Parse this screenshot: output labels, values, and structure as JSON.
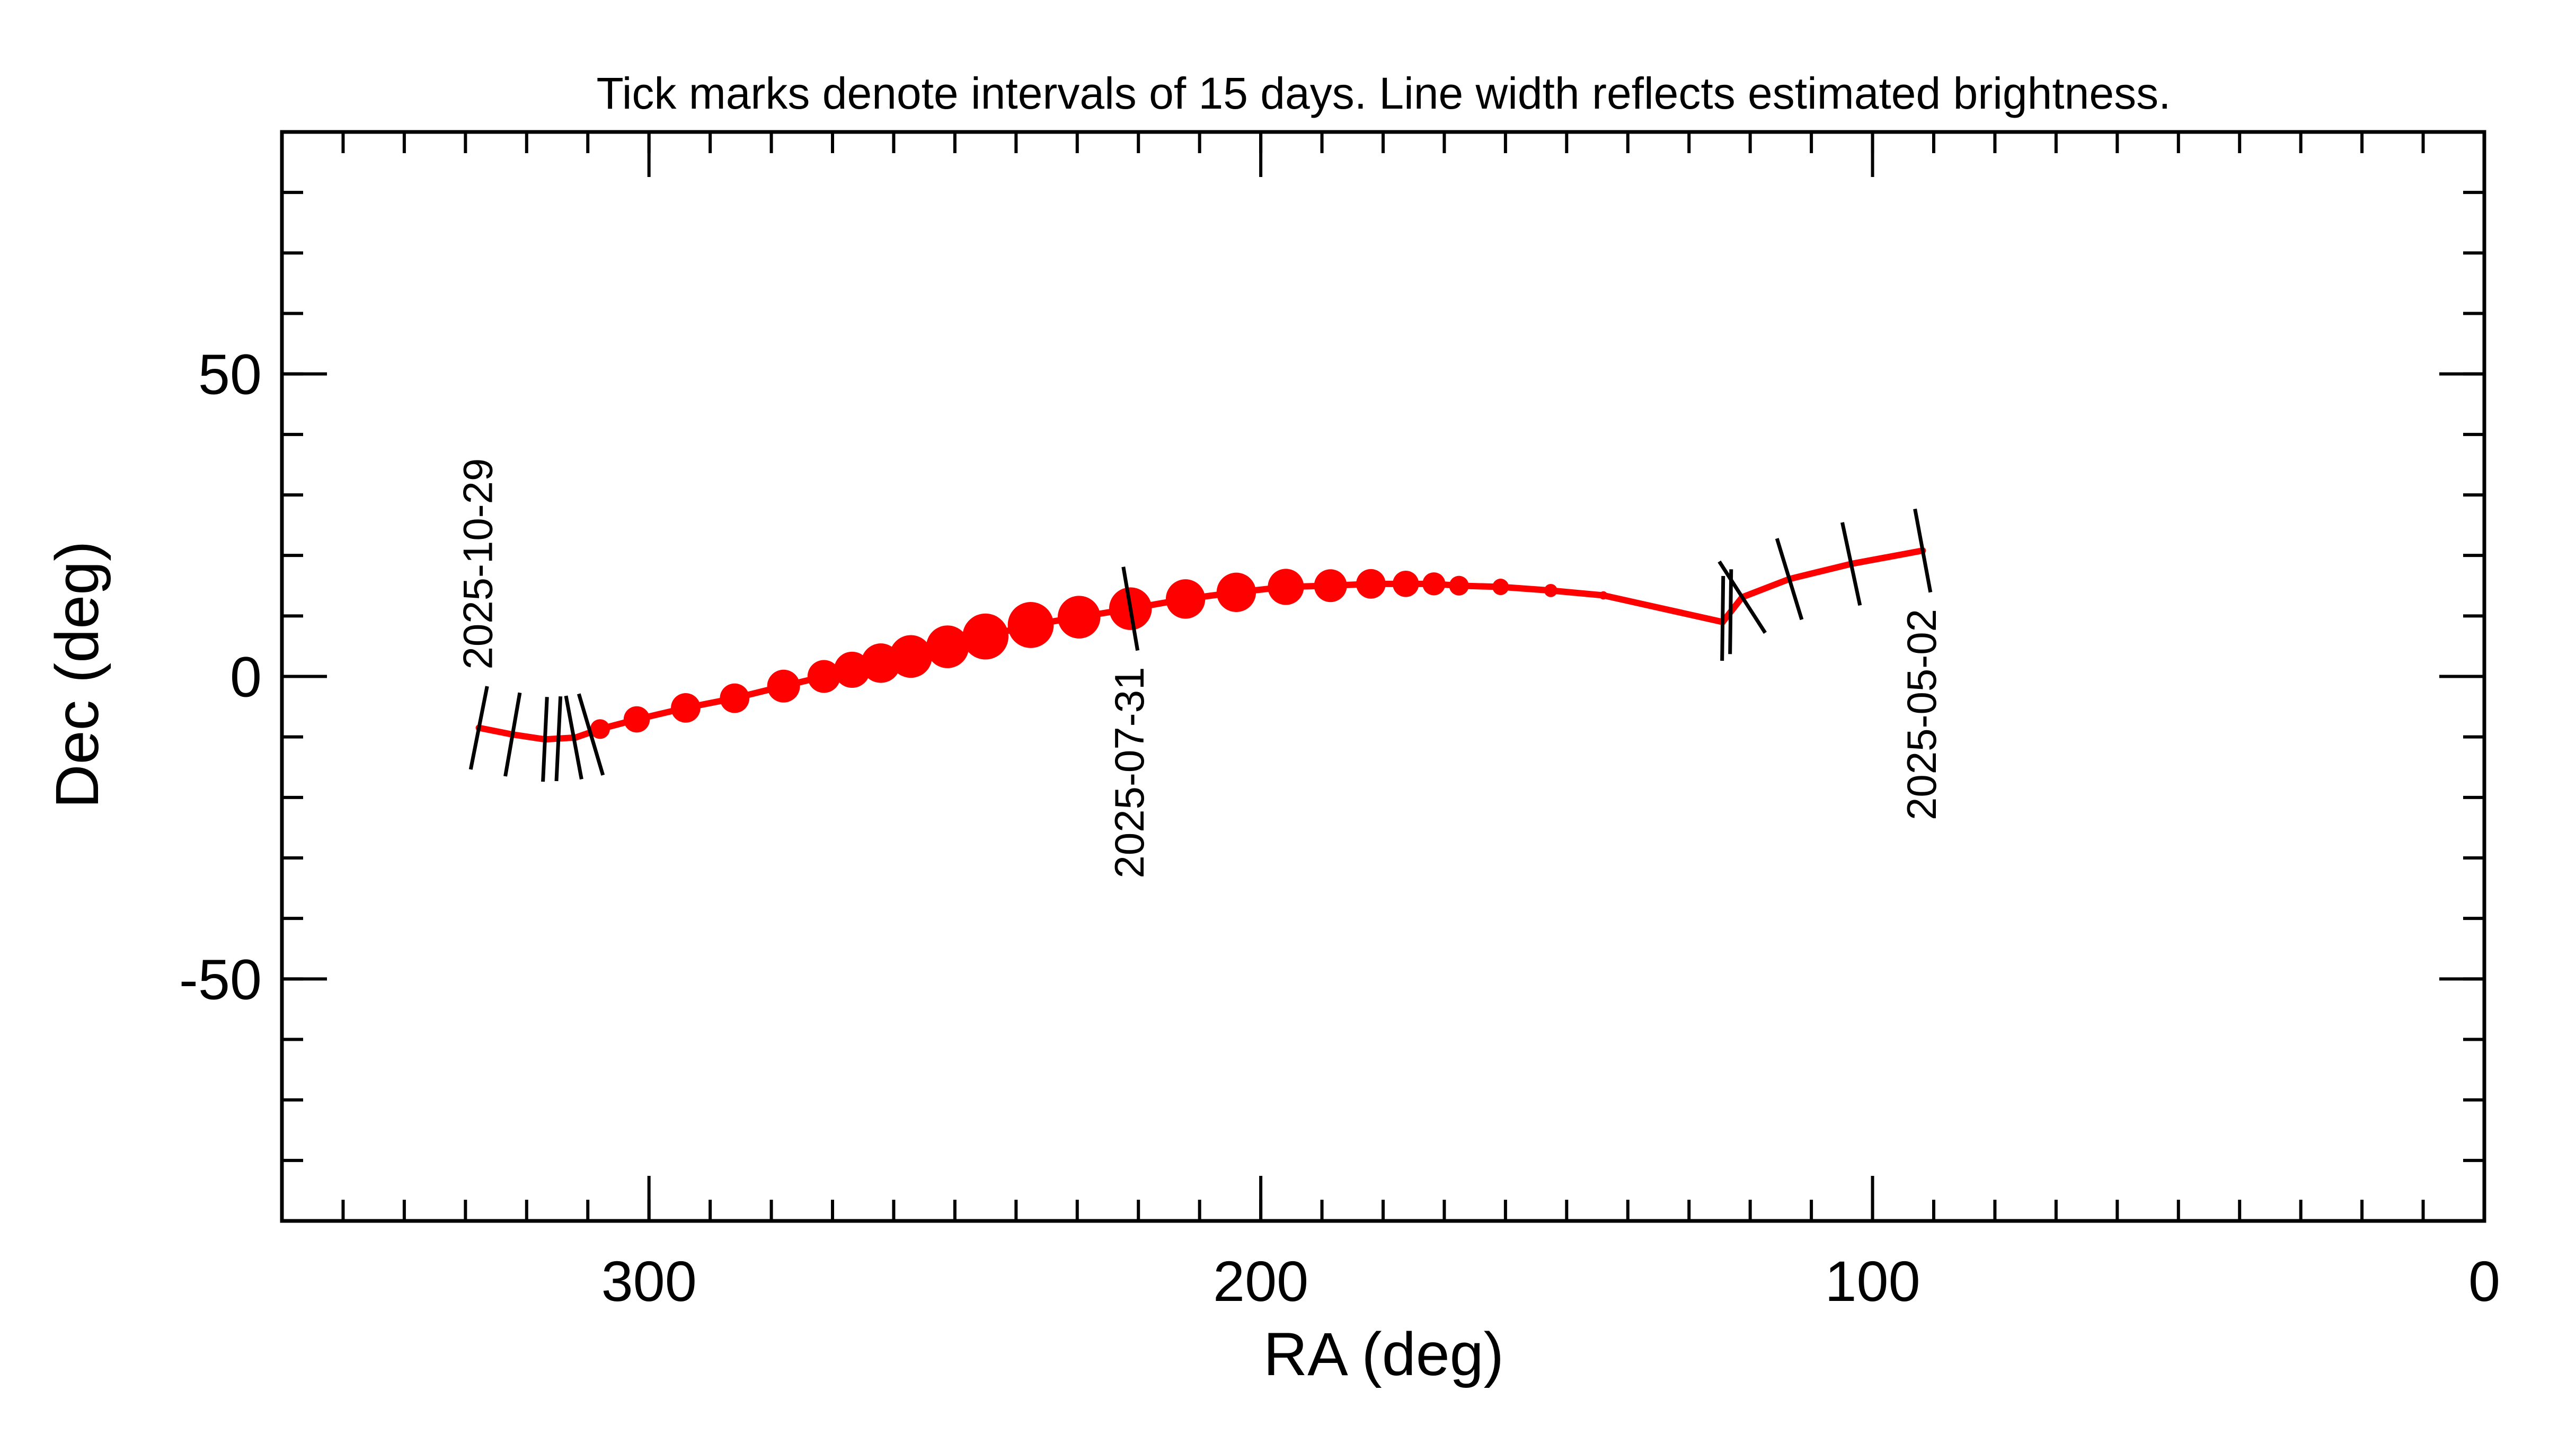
{
  "chart_data": {
    "type": "line",
    "title": "Tick marks denote intervals of 15 days.  Line width reflects estimated brightness.",
    "x_label": "RA (deg)",
    "y_label": "Dec (deg)",
    "xlim": [
      360,
      0
    ],
    "ylim": [
      -90,
      90
    ],
    "xticks": [
      300,
      200,
      100,
      0
    ],
    "yticks": [
      -50,
      0,
      50
    ],
    "x_minor_step": 10,
    "y_minor_step": 10,
    "series": [
      {
        "color": "#ff0000",
        "x": [
          91.8,
          103.5,
          113.6,
          121.3,
          124.5,
          144,
          152.6,
          160.8,
          167.6,
          171.7,
          176.3,
          182,
          188.6,
          195.9,
          204,
          212.3,
          221.3,
          229.7,
          237.6,
          245,
          251.2,
          257.2,
          262.1,
          266.8,
          271.4,
          278,
          286,
          294,
          302,
          308,
          312,
          317,
          322.3,
          327.8
        ],
        "y": [
          20.8,
          18.6,
          16.1,
          13.1,
          9,
          13.4,
          14.2,
          14.8,
          15,
          15.3,
          15.3,
          15.3,
          15,
          14.8,
          13.9,
          12.8,
          11.2,
          9.8,
          8.5,
          6.6,
          4.9,
          3.3,
          2.2,
          1.1,
          0,
          -1.6,
          -3.6,
          -5.2,
          -7.1,
          -8.7,
          -10.1,
          -10.4,
          -9.6,
          -8.5
        ],
        "sizes": [
          4,
          4,
          4,
          4,
          4,
          5,
          8,
          10,
          12,
          14,
          16,
          18,
          20,
          22,
          24,
          24,
          26,
          26,
          28,
          28,
          26,
          26,
          24,
          22,
          20,
          20,
          18,
          18,
          16,
          12,
          4,
          4,
          4,
          4
        ]
      }
    ],
    "date_ticks": {
      "x": [
        91.8,
        103.5,
        113.6,
        121.3,
        123.2,
        124.5,
        221.3,
        309.5,
        312.3,
        314.8,
        317,
        322.3,
        327.8
      ],
      "y": [
        20.8,
        18.6,
        16.1,
        13.1,
        10.7,
        9.6,
        11.2,
        -9.6,
        -10.1,
        -10.3,
        -10.4,
        -9.6,
        -8.5
      ]
    },
    "date_labels": [
      {
        "text": "2025-05-02",
        "x": 91.8,
        "y": 20.8
      },
      {
        "text": "2025-07-31",
        "x": 221.3,
        "y": 11.2
      },
      {
        "text": "2025-10-29",
        "x": 327.8,
        "y": -8.5
      }
    ]
  }
}
